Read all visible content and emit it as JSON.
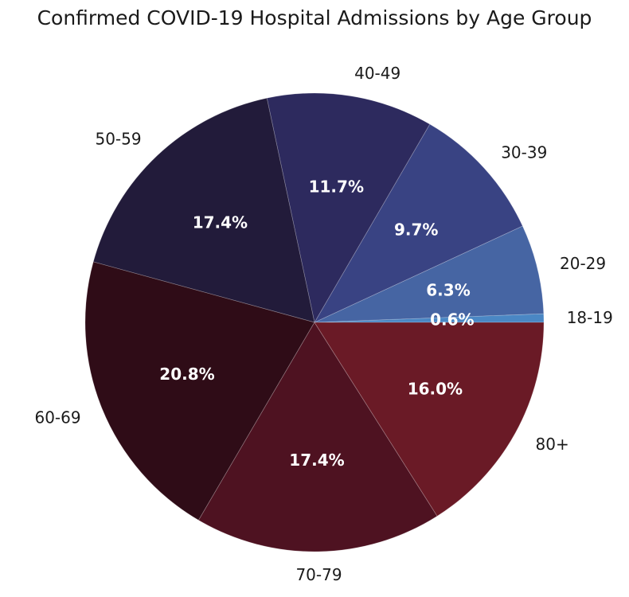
{
  "chart_data": {
    "type": "pie",
    "title": "Confirmed COVID-19 Hospital Admissions by Age Group",
    "start_angle_deg": 0,
    "direction": "counterclockwise",
    "slices": [
      {
        "label": "18-19",
        "value": 0.6,
        "pct_label": "0.6%",
        "color": "#4a87c4"
      },
      {
        "label": "20-29",
        "value": 6.3,
        "pct_label": "6.3%",
        "color": "#4665a3"
      },
      {
        "label": "30-39",
        "value": 9.7,
        "pct_label": "9.7%",
        "color": "#394383"
      },
      {
        "label": "40-49",
        "value": 11.7,
        "pct_label": "11.7%",
        "color": "#2d2a5e"
      },
      {
        "label": "50-59",
        "value": 17.4,
        "pct_label": "17.4%",
        "color": "#221b3a"
      },
      {
        "label": "60-69",
        "value": 20.8,
        "pct_label": "20.8%",
        "color": "#2f0c17"
      },
      {
        "label": "70-79",
        "value": 17.4,
        "pct_label": "17.4%",
        "color": "#4e1221"
      },
      {
        "label": "80+",
        "value": 16.0,
        "pct_label": "16.0%",
        "color": "#6a1a26"
      }
    ]
  }
}
